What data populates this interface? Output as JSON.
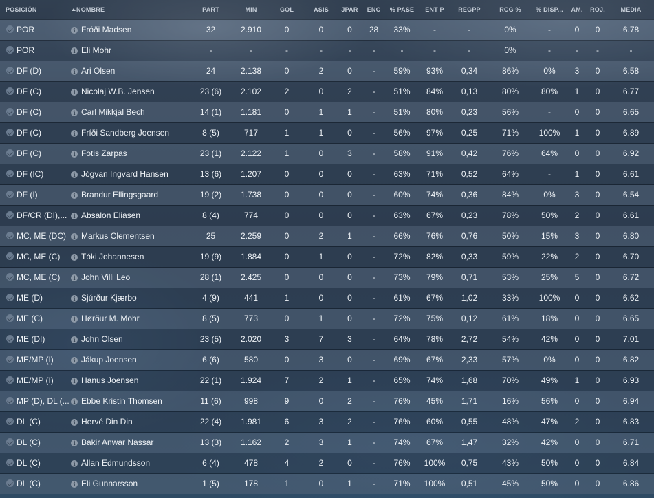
{
  "columns": {
    "pos": "POSICIÓN",
    "name": "NOMBRE",
    "part": "PART",
    "min": "MIN",
    "gol": "GOL",
    "asis": "ASIS",
    "jpar": "JPAR",
    "enc": "ENC",
    "pase": "% PASE",
    "entp": "ENT P",
    "regpp": "REGPP",
    "rcg": "RCG %",
    "disp": "% DISP...",
    "am": "AM.",
    "roj": "ROJ.",
    "media": "MEDIA"
  },
  "rows": [
    {
      "pos": "POR",
      "name": "Fróði Madsen",
      "part": "32",
      "min": "2.910",
      "gol": "0",
      "asis": "0",
      "jpar": "0",
      "enc": "28",
      "pase": "33%",
      "entp": "-",
      "regpp": "-",
      "rcg": "0%",
      "disp": "-",
      "am": "0",
      "roj": "0",
      "media": "6.78"
    },
    {
      "pos": "POR",
      "name": "Eli Mohr",
      "part": "-",
      "min": "-",
      "gol": "-",
      "asis": "-",
      "jpar": "-",
      "enc": "-",
      "pase": "-",
      "entp": "-",
      "regpp": "-",
      "rcg": "0%",
      "disp": "-",
      "am": "-",
      "roj": "-",
      "media": "-"
    },
    {
      "pos": "DF (D)",
      "name": "Ari Olsen",
      "part": "24",
      "min": "2.138",
      "gol": "0",
      "asis": "2",
      "jpar": "0",
      "enc": "-",
      "pase": "59%",
      "entp": "93%",
      "regpp": "0,34",
      "rcg": "86%",
      "disp": "0%",
      "am": "3",
      "roj": "0",
      "media": "6.58"
    },
    {
      "pos": "DF (C)",
      "name": "Nicolaj W.B. Jensen",
      "part": "23 (6)",
      "min": "2.102",
      "gol": "2",
      "asis": "0",
      "jpar": "2",
      "enc": "-",
      "pase": "51%",
      "entp": "84%",
      "regpp": "0,13",
      "rcg": "80%",
      "disp": "80%",
      "am": "1",
      "roj": "0",
      "media": "6.77"
    },
    {
      "pos": "DF (C)",
      "name": "Carl Mikkjal Bech",
      "part": "14 (1)",
      "min": "1.181",
      "gol": "0",
      "asis": "1",
      "jpar": "1",
      "enc": "-",
      "pase": "51%",
      "entp": "80%",
      "regpp": "0,23",
      "rcg": "56%",
      "disp": "-",
      "am": "0",
      "roj": "0",
      "media": "6.65"
    },
    {
      "pos": "DF (C)",
      "name": "Fríði Sandberg Joensen",
      "part": "8 (5)",
      "min": "717",
      "gol": "1",
      "asis": "1",
      "jpar": "0",
      "enc": "-",
      "pase": "56%",
      "entp": "97%",
      "regpp": "0,25",
      "rcg": "71%",
      "disp": "100%",
      "am": "1",
      "roj": "0",
      "media": "6.89"
    },
    {
      "pos": "DF (C)",
      "name": "Fotis Zarpas",
      "part": "23 (1)",
      "min": "2.122",
      "gol": "1",
      "asis": "0",
      "jpar": "3",
      "enc": "-",
      "pase": "58%",
      "entp": "91%",
      "regpp": "0,42",
      "rcg": "76%",
      "disp": "64%",
      "am": "0",
      "roj": "0",
      "media": "6.92"
    },
    {
      "pos": "DF (IC)",
      "name": "Jógvan Ingvard Hansen",
      "part": "13 (6)",
      "min": "1.207",
      "gol": "0",
      "asis": "0",
      "jpar": "0",
      "enc": "-",
      "pase": "63%",
      "entp": "71%",
      "regpp": "0,52",
      "rcg": "64%",
      "disp": "-",
      "am": "1",
      "roj": "0",
      "media": "6.61"
    },
    {
      "pos": "DF (I)",
      "name": "Brandur Ellingsgaard",
      "part": "19 (2)",
      "min": "1.738",
      "gol": "0",
      "asis": "0",
      "jpar": "0",
      "enc": "-",
      "pase": "60%",
      "entp": "74%",
      "regpp": "0,36",
      "rcg": "84%",
      "disp": "0%",
      "am": "3",
      "roj": "0",
      "media": "6.54"
    },
    {
      "pos": "DF/CR (DI),...",
      "name": "Absalon Eliasen",
      "part": "8 (4)",
      "min": "774",
      "gol": "0",
      "asis": "0",
      "jpar": "0",
      "enc": "-",
      "pase": "63%",
      "entp": "67%",
      "regpp": "0,23",
      "rcg": "78%",
      "disp": "50%",
      "am": "2",
      "roj": "0",
      "media": "6.61"
    },
    {
      "pos": "MC, ME (DC)",
      "name": "Markus Clementsen",
      "part": "25",
      "min": "2.259",
      "gol": "0",
      "asis": "2",
      "jpar": "1",
      "enc": "-",
      "pase": "66%",
      "entp": "76%",
      "regpp": "0,76",
      "rcg": "50%",
      "disp": "15%",
      "am": "3",
      "roj": "0",
      "media": "6.80"
    },
    {
      "pos": "MC, ME (C)",
      "name": "Tóki Johannesen",
      "part": "19 (9)",
      "min": "1.884",
      "gol": "0",
      "asis": "1",
      "jpar": "0",
      "enc": "-",
      "pase": "72%",
      "entp": "82%",
      "regpp": "0,33",
      "rcg": "59%",
      "disp": "22%",
      "am": "2",
      "roj": "0",
      "media": "6.70"
    },
    {
      "pos": "MC, ME (C)",
      "name": "John Villi Leo",
      "part": "28 (1)",
      "min": "2.425",
      "gol": "0",
      "asis": "0",
      "jpar": "0",
      "enc": "-",
      "pase": "73%",
      "entp": "79%",
      "regpp": "0,71",
      "rcg": "53%",
      "disp": "25%",
      "am": "5",
      "roj": "0",
      "media": "6.72"
    },
    {
      "pos": "ME (D)",
      "name": "Sjúrður Kjærbo",
      "part": "4 (9)",
      "min": "441",
      "gol": "1",
      "asis": "0",
      "jpar": "0",
      "enc": "-",
      "pase": "61%",
      "entp": "67%",
      "regpp": "1,02",
      "rcg": "33%",
      "disp": "100%",
      "am": "0",
      "roj": "0",
      "media": "6.62"
    },
    {
      "pos": "ME (C)",
      "name": "Hørður M. Mohr",
      "part": "8 (5)",
      "min": "773",
      "gol": "0",
      "asis": "1",
      "jpar": "0",
      "enc": "-",
      "pase": "72%",
      "entp": "75%",
      "regpp": "0,12",
      "rcg": "61%",
      "disp": "18%",
      "am": "0",
      "roj": "0",
      "media": "6.65"
    },
    {
      "pos": "ME (DI)",
      "name": "John Olsen",
      "part": "23 (5)",
      "min": "2.020",
      "gol": "3",
      "asis": "7",
      "jpar": "3",
      "enc": "-",
      "pase": "64%",
      "entp": "78%",
      "regpp": "2,72",
      "rcg": "54%",
      "disp": "42%",
      "am": "0",
      "roj": "0",
      "media": "7.01"
    },
    {
      "pos": "ME/MP (I)",
      "name": "Jákup Joensen",
      "part": "6 (6)",
      "min": "580",
      "gol": "0",
      "asis": "3",
      "jpar": "0",
      "enc": "-",
      "pase": "69%",
      "entp": "67%",
      "regpp": "2,33",
      "rcg": "57%",
      "disp": "0%",
      "am": "0",
      "roj": "0",
      "media": "6.82"
    },
    {
      "pos": "ME/MP (I)",
      "name": "Hanus Joensen",
      "part": "22 (1)",
      "min": "1.924",
      "gol": "7",
      "asis": "2",
      "jpar": "1",
      "enc": "-",
      "pase": "65%",
      "entp": "74%",
      "regpp": "1,68",
      "rcg": "70%",
      "disp": "49%",
      "am": "1",
      "roj": "0",
      "media": "6.93"
    },
    {
      "pos": "MP (D), DL (...",
      "name": "Ebbe Kristin Thomsen",
      "part": "11 (6)",
      "min": "998",
      "gol": "9",
      "asis": "0",
      "jpar": "2",
      "enc": "-",
      "pase": "76%",
      "entp": "45%",
      "regpp": "1,71",
      "rcg": "16%",
      "disp": "56%",
      "am": "0",
      "roj": "0",
      "media": "6.94"
    },
    {
      "pos": "DL (C)",
      "name": "Hervé Din Din",
      "part": "22 (4)",
      "min": "1.981",
      "gol": "6",
      "asis": "3",
      "jpar": "2",
      "enc": "-",
      "pase": "76%",
      "entp": "60%",
      "regpp": "0,55",
      "rcg": "48%",
      "disp": "47%",
      "am": "2",
      "roj": "0",
      "media": "6.83"
    },
    {
      "pos": "DL (C)",
      "name": "Bakir Anwar Nassar",
      "part": "13 (3)",
      "min": "1.162",
      "gol": "2",
      "asis": "3",
      "jpar": "1",
      "enc": "-",
      "pase": "74%",
      "entp": "67%",
      "regpp": "1,47",
      "rcg": "32%",
      "disp": "42%",
      "am": "0",
      "roj": "0",
      "media": "6.71"
    },
    {
      "pos": "DL (C)",
      "name": "Allan Edmundsson",
      "part": "6 (4)",
      "min": "478",
      "gol": "4",
      "asis": "2",
      "jpar": "0",
      "enc": "-",
      "pase": "76%",
      "entp": "100%",
      "regpp": "0,75",
      "rcg": "43%",
      "disp": "50%",
      "am": "0",
      "roj": "0",
      "media": "6.84"
    },
    {
      "pos": "DL (C)",
      "name": "Eli Gunnarsson",
      "part": "1 (5)",
      "min": "178",
      "gol": "1",
      "asis": "0",
      "jpar": "1",
      "enc": "-",
      "pase": "71%",
      "entp": "100%",
      "regpp": "0,51",
      "rcg": "45%",
      "disp": "50%",
      "am": "0",
      "roj": "0",
      "media": "6.86"
    }
  ]
}
